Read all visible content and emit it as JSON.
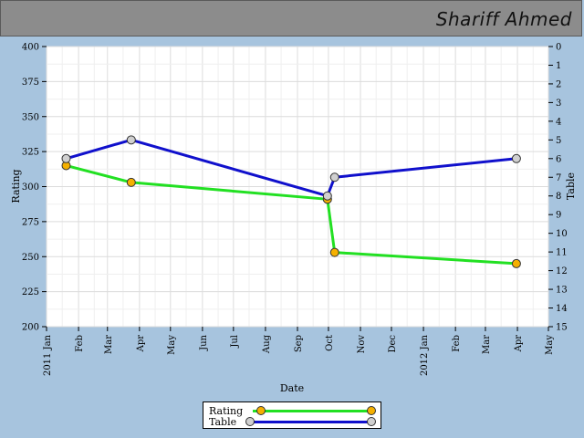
{
  "header": {
    "name": "Shariff Ahmed"
  },
  "colors": {
    "background": "#a7c4de",
    "header": "#8c8c8c",
    "rating_line": "#22e022",
    "rating_marker": "#f5b000",
    "table_line": "#1010cc",
    "table_marker": "#d0d0d0"
  },
  "legend": {
    "rating_label": "Rating",
    "table_label": "Table",
    "position": "bottom-center"
  },
  "chart_data": {
    "type": "line",
    "xlabel": "Date",
    "ylabel": "Rating",
    "y2label": "Table",
    "x_range": [
      "2011-01-01",
      "2012-05-01"
    ],
    "ylim": [
      200,
      400
    ],
    "y2lim": [
      0,
      15
    ],
    "y2_inverted": true,
    "grid": true,
    "x_ticks": [
      "2011 Jan",
      "Feb",
      "Mar",
      "Apr",
      "May",
      "Jun",
      "Jul",
      "Aug",
      "Sep",
      "Oct",
      "Nov",
      "Dec",
      "2012 Jan",
      "Feb",
      "Mar",
      "Apr",
      "May"
    ],
    "y_ticks": [
      200,
      225,
      250,
      275,
      300,
      325,
      350,
      375,
      400
    ],
    "y2_ticks": [
      0,
      1,
      2,
      3,
      4,
      5,
      6,
      7,
      8,
      9,
      10,
      11,
      12,
      13,
      14,
      15
    ],
    "series": [
      {
        "name": "Rating",
        "axis": "left",
        "points": [
          {
            "x": "2011-01-20",
            "y": 315
          },
          {
            "x": "2011-03-24",
            "y": 303
          },
          {
            "x": "2011-09-30",
            "y": 291
          },
          {
            "x": "2011-10-07",
            "y": 253
          },
          {
            "x": "2012-03-31",
            "y": 245
          }
        ]
      },
      {
        "name": "Table",
        "axis": "right",
        "points": [
          {
            "x": "2011-01-20",
            "y": 6
          },
          {
            "x": "2011-03-24",
            "y": 5
          },
          {
            "x": "2011-09-30",
            "y": 8
          },
          {
            "x": "2011-10-07",
            "y": 7
          },
          {
            "x": "2012-03-31",
            "y": 6
          }
        ]
      }
    ]
  }
}
